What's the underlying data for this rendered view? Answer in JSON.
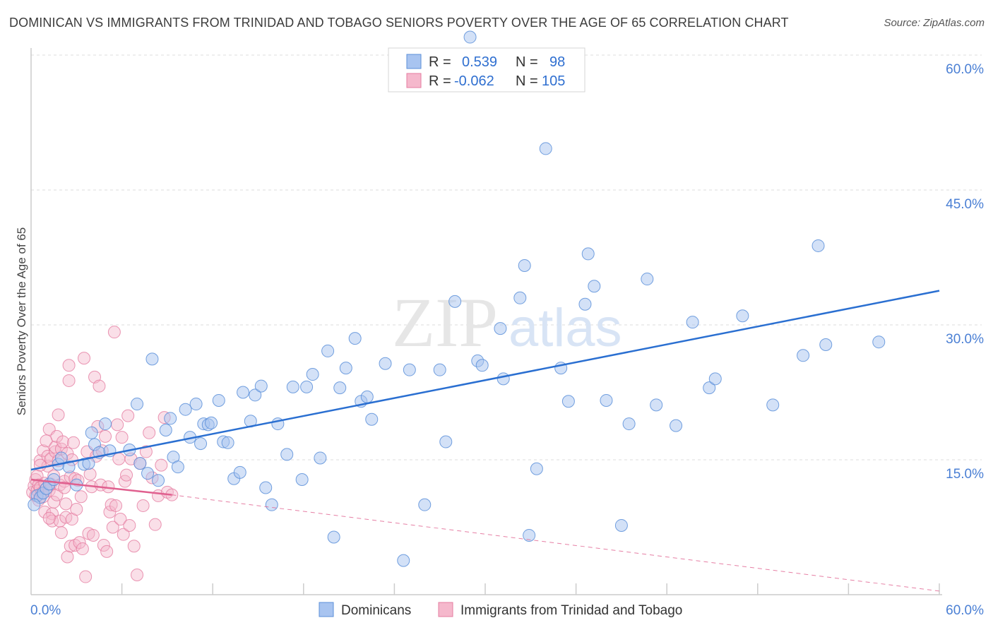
{
  "title": "DOMINICAN VS IMMIGRANTS FROM TRINIDAD AND TOBAGO SENIORS POVERTY OVER THE AGE OF 65 CORRELATION CHART",
  "source": "Source: ZipAtlas.com",
  "watermark": {
    "zip": "ZIP",
    "atlas": "atlas"
  },
  "colors": {
    "blue": "#a8c4f0",
    "blue_stroke": "#5b8fd9",
    "blue_line": "#2a6fd1",
    "pink": "#f5b8cc",
    "pink_stroke": "#e57ca0",
    "pink_line": "#e0608f",
    "tick_text": "#4a7fd4",
    "grid": "#dddddd"
  },
  "legend": {
    "rows": [
      {
        "r_label": "R =",
        "r_value": "0.539",
        "n_label": "N =",
        "n_value": "98"
      },
      {
        "r_label": "R =",
        "r_value": "-0.062",
        "n_label": "N =",
        "n_value": "105"
      }
    ]
  },
  "chart_data": {
    "type": "scatter",
    "title": "DOMINICAN VS IMMIGRANTS FROM TRINIDAD AND TOBAGO SENIORS POVERTY OVER THE AGE OF 65 CORRELATION CHART",
    "xlabel": "",
    "ylabel": "Seniors Poverty Over the Age of 65",
    "xlim": [
      0,
      60
    ],
    "ylim": [
      0,
      60
    ],
    "x_tick_labels": [
      "0.0%",
      "60.0%"
    ],
    "y_ticks": [
      15,
      30,
      45,
      60
    ],
    "y_tick_labels": [
      "15.0%",
      "30.0%",
      "45.0%",
      "60.0%"
    ],
    "grid": "horizontal dashed",
    "legend_position": "top-center",
    "series": [
      {
        "name": "Dominicans",
        "color": "#a8c4f0",
        "trend": {
          "x": [
            0,
            60
          ],
          "y": [
            13.9,
            33.8
          ]
        },
        "points": [
          [
            0.4,
            11.0
          ],
          [
            0.6,
            10.8
          ],
          [
            0.8,
            11.3
          ],
          [
            1.0,
            11.8
          ],
          [
            1.2,
            12.3
          ],
          [
            1.5,
            12.8
          ],
          [
            1.8,
            14.5
          ],
          [
            2.0,
            15.2
          ],
          [
            2.5,
            14.2
          ],
          [
            3.0,
            12.2
          ],
          [
            3.5,
            14.5
          ],
          [
            3.8,
            14.6
          ],
          [
            4.2,
            16.7
          ],
          [
            4.0,
            18.0
          ],
          [
            4.5,
            15.8
          ],
          [
            4.9,
            19.0
          ],
          [
            5.2,
            16.0
          ],
          [
            6.5,
            16.1
          ],
          [
            7.0,
            21.2
          ],
          [
            7.2,
            14.6
          ],
          [
            7.7,
            13.5
          ],
          [
            8.0,
            26.2
          ],
          [
            8.4,
            12.7
          ],
          [
            8.9,
            18.3
          ],
          [
            9.2,
            19.6
          ],
          [
            9.4,
            15.3
          ],
          [
            9.7,
            14.2
          ],
          [
            10.2,
            20.6
          ],
          [
            10.5,
            17.5
          ],
          [
            10.9,
            21.2
          ],
          [
            11.2,
            16.8
          ],
          [
            11.4,
            19.0
          ],
          [
            11.7,
            18.9
          ],
          [
            11.9,
            19.1
          ],
          [
            12.4,
            21.6
          ],
          [
            12.7,
            17.0
          ],
          [
            13.0,
            16.9
          ],
          [
            13.4,
            12.9
          ],
          [
            13.8,
            13.6
          ],
          [
            14.0,
            22.5
          ],
          [
            14.5,
            19.3
          ],
          [
            14.8,
            22.2
          ],
          [
            15.2,
            23.2
          ],
          [
            15.5,
            11.9
          ],
          [
            15.9,
            10.0
          ],
          [
            16.3,
            19.0
          ],
          [
            16.9,
            15.6
          ],
          [
            17.3,
            23.1
          ],
          [
            17.9,
            12.8
          ],
          [
            18.2,
            23.1
          ],
          [
            18.6,
            24.5
          ],
          [
            19.1,
            15.2
          ],
          [
            19.6,
            27.1
          ],
          [
            20.0,
            6.4
          ],
          [
            20.4,
            23.0
          ],
          [
            20.8,
            25.2
          ],
          [
            21.4,
            28.5
          ],
          [
            21.8,
            21.5
          ],
          [
            22.2,
            22.0
          ],
          [
            22.5,
            19.5
          ],
          [
            23.4,
            25.7
          ],
          [
            24.6,
            3.8
          ],
          [
            25.0,
            25.0
          ],
          [
            26.0,
            10.0
          ],
          [
            27.0,
            25.0
          ],
          [
            27.4,
            17.0
          ],
          [
            28.0,
            32.6
          ],
          [
            29.0,
            62.0
          ],
          [
            29.5,
            26.0
          ],
          [
            29.8,
            25.5
          ],
          [
            31.0,
            29.6
          ],
          [
            31.2,
            24.0
          ],
          [
            32.3,
            33.0
          ],
          [
            32.6,
            36.6
          ],
          [
            32.9,
            6.6
          ],
          [
            33.4,
            14.0
          ],
          [
            34.0,
            49.6
          ],
          [
            35.0,
            25.2
          ],
          [
            35.5,
            21.5
          ],
          [
            36.6,
            32.3
          ],
          [
            36.8,
            37.9
          ],
          [
            37.2,
            34.3
          ],
          [
            38.0,
            21.6
          ],
          [
            39.0,
            7.7
          ],
          [
            39.5,
            19.0
          ],
          [
            40.7,
            35.1
          ],
          [
            41.3,
            21.1
          ],
          [
            42.6,
            18.8
          ],
          [
            43.7,
            30.3
          ],
          [
            44.8,
            23.0
          ],
          [
            45.2,
            24.0
          ],
          [
            47.0,
            31.0
          ],
          [
            49.0,
            21.1
          ],
          [
            51.0,
            26.6
          ],
          [
            52.0,
            38.8
          ],
          [
            52.5,
            27.8
          ],
          [
            56.0,
            28.1
          ],
          [
            0.2,
            10.0
          ]
        ]
      },
      {
        "name": "Immigrants from Trinidad and Tobago",
        "color": "#f5b8cc",
        "trend_solid": {
          "x": [
            0,
            9.3
          ],
          "y": [
            12.8,
            11.1
          ]
        },
        "trend_dashed": {
          "x": [
            9.3,
            60
          ],
          "y": [
            11.1,
            0.4
          ]
        },
        "points": [
          [
            0.1,
            11.4
          ],
          [
            0.2,
            12.1
          ],
          [
            0.3,
            11.0
          ],
          [
            0.3,
            12.8
          ],
          [
            0.4,
            11.6
          ],
          [
            0.4,
            13.2
          ],
          [
            0.5,
            10.5
          ],
          [
            0.5,
            12.2
          ],
          [
            0.6,
            11.9
          ],
          [
            0.6,
            14.9
          ],
          [
            0.7,
            11.3
          ],
          [
            0.8,
            10.9
          ],
          [
            0.8,
            16.0
          ],
          [
            0.9,
            12.4
          ],
          [
            0.9,
            9.2
          ],
          [
            1.0,
            17.1
          ],
          [
            1.0,
            11.8
          ],
          [
            1.1,
            14.3
          ],
          [
            1.1,
            15.4
          ],
          [
            1.2,
            18.4
          ],
          [
            1.2,
            11.6
          ],
          [
            1.3,
            12.3
          ],
          [
            1.3,
            15.1
          ],
          [
            1.4,
            9.0
          ],
          [
            1.4,
            8.2
          ],
          [
            1.5,
            10.3
          ],
          [
            1.5,
            13.2
          ],
          [
            1.6,
            15.9
          ],
          [
            1.6,
            16.4
          ],
          [
            1.7,
            17.6
          ],
          [
            1.7,
            11.1
          ],
          [
            1.8,
            14.9
          ],
          [
            1.8,
            20.0
          ],
          [
            1.9,
            12.2
          ],
          [
            1.9,
            8.2
          ],
          [
            2.0,
            16.2
          ],
          [
            2.0,
            6.9
          ],
          [
            2.1,
            17.0
          ],
          [
            2.2,
            12.6
          ],
          [
            2.2,
            11.9
          ],
          [
            2.3,
            10.1
          ],
          [
            2.3,
            8.6
          ],
          [
            2.4,
            15.7
          ],
          [
            2.4,
            4.2
          ],
          [
            2.5,
            23.8
          ],
          [
            2.5,
            25.5
          ],
          [
            2.6,
            5.4
          ],
          [
            2.6,
            13.1
          ],
          [
            2.7,
            15.0
          ],
          [
            2.7,
            8.4
          ],
          [
            2.8,
            16.9
          ],
          [
            2.9,
            12.9
          ],
          [
            2.9,
            5.5
          ],
          [
            3.0,
            9.5
          ],
          [
            3.1,
            12.7
          ],
          [
            3.2,
            5.8
          ],
          [
            3.3,
            10.9
          ],
          [
            3.4,
            5.1
          ],
          [
            3.5,
            26.3
          ],
          [
            3.6,
            2.0
          ],
          [
            3.7,
            15.9
          ],
          [
            3.8,
            6.8
          ],
          [
            3.9,
            13.4
          ],
          [
            4.0,
            12.0
          ],
          [
            4.1,
            6.6
          ],
          [
            4.2,
            24.2
          ],
          [
            4.3,
            15.4
          ],
          [
            4.4,
            18.7
          ],
          [
            4.5,
            23.2
          ],
          [
            4.6,
            12.2
          ],
          [
            4.7,
            16.0
          ],
          [
            4.8,
            5.5
          ],
          [
            4.9,
            17.6
          ],
          [
            5.0,
            4.8
          ],
          [
            5.1,
            12.0
          ],
          [
            5.2,
            9.2
          ],
          [
            5.3,
            10.0
          ],
          [
            5.4,
            7.5
          ],
          [
            5.5,
            29.2
          ],
          [
            5.6,
            9.9
          ],
          [
            5.7,
            18.9
          ],
          [
            5.8,
            15.1
          ],
          [
            5.9,
            8.4
          ],
          [
            6.0,
            17.5
          ],
          [
            6.1,
            6.7
          ],
          [
            6.2,
            12.6
          ],
          [
            6.3,
            13.3
          ],
          [
            6.4,
            19.9
          ],
          [
            6.5,
            7.7
          ],
          [
            6.6,
            15.1
          ],
          [
            6.8,
            5.4
          ],
          [
            7.0,
            2.2
          ],
          [
            7.2,
            14.6
          ],
          [
            7.4,
            9.9
          ],
          [
            7.6,
            15.9
          ],
          [
            7.8,
            18.0
          ],
          [
            8.0,
            13.0
          ],
          [
            8.2,
            7.8
          ],
          [
            8.4,
            11.0
          ],
          [
            8.6,
            14.4
          ],
          [
            8.8,
            19.7
          ],
          [
            9.0,
            11.4
          ],
          [
            9.3,
            11.1
          ],
          [
            0.6,
            14.4
          ],
          [
            1.2,
            8.5
          ]
        ]
      }
    ]
  },
  "bottom_legend": [
    {
      "label": "Dominicans"
    },
    {
      "label": "Immigrants from Trinidad and Tobago"
    }
  ]
}
